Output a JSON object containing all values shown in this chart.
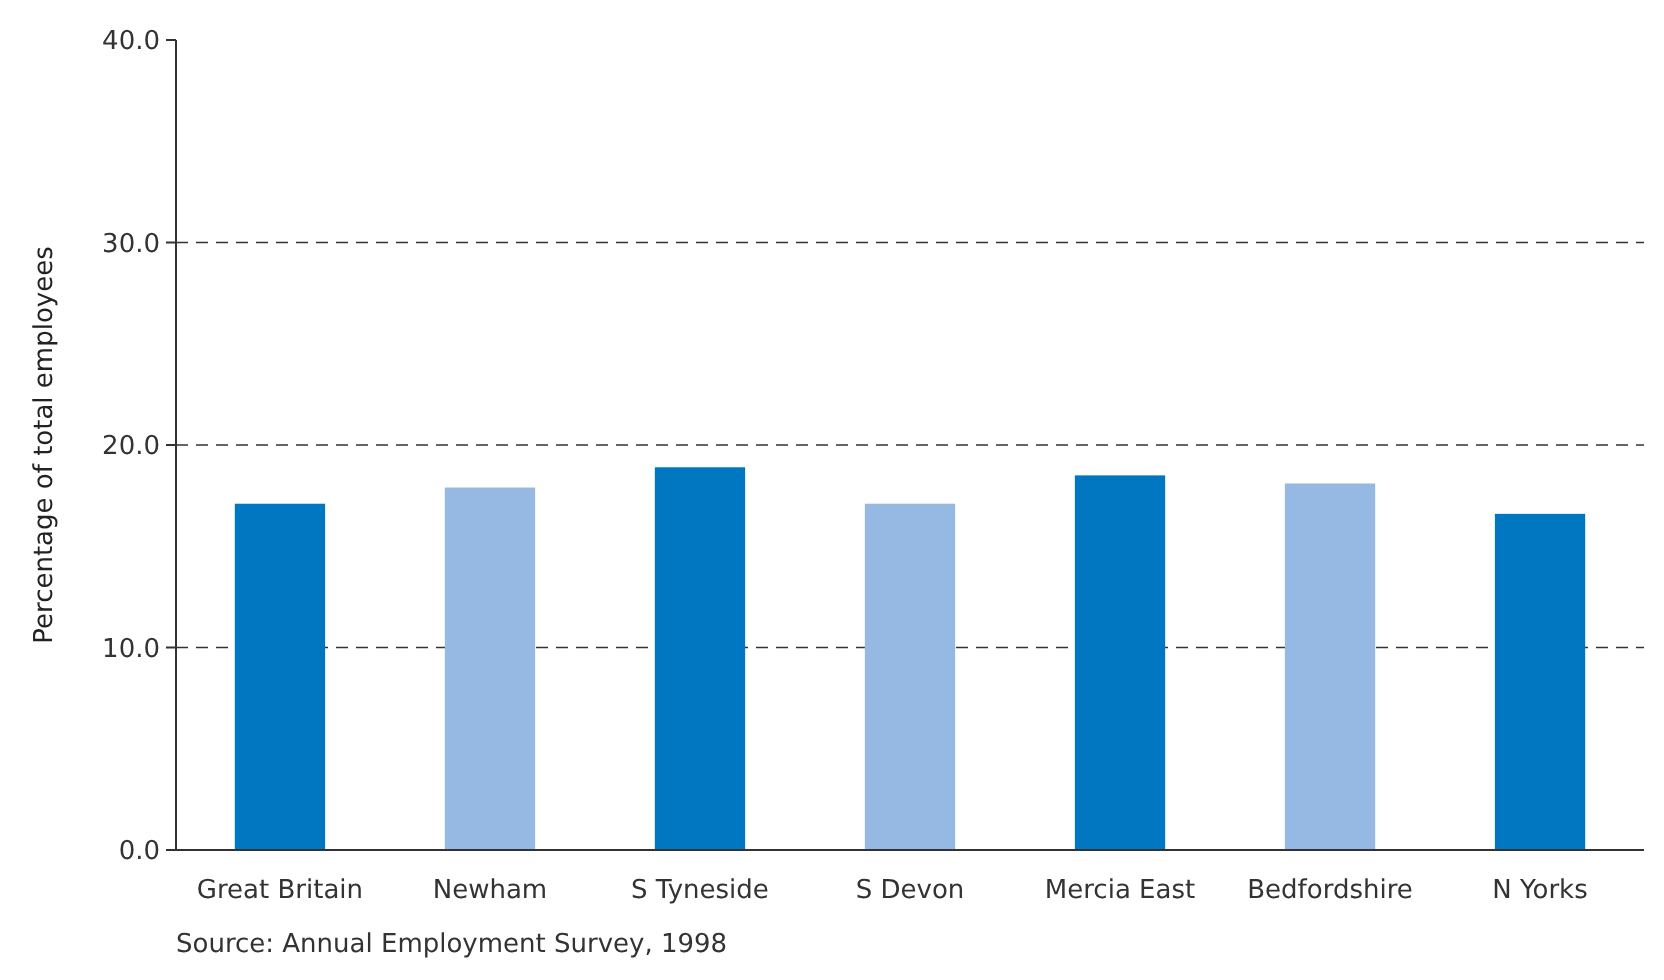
{
  "chart_data": {
    "type": "bar",
    "ylabel": "Percentage of total employees",
    "categories": [
      "Great Britain",
      "Newham",
      "S Tyneside",
      "S Devon",
      "Mercia East",
      "Bedfordshire",
      "N Yorks"
    ],
    "values": [
      17.1,
      17.9,
      18.9,
      17.1,
      18.5,
      18.1,
      16.6
    ],
    "colors": [
      "#0077c0",
      "#96b9e3",
      "#0077c0",
      "#96b9e3",
      "#0077c0",
      "#96b9e3",
      "#0077c0"
    ],
    "ylim": [
      0,
      40
    ],
    "yticks": [
      {
        "value": 0,
        "label": "0.0"
      },
      {
        "value": 10,
        "label": "10.0"
      },
      {
        "value": 20,
        "label": "20.0"
      },
      {
        "value": 30,
        "label": "30.0"
      },
      {
        "value": 40,
        "label": "40.0"
      }
    ],
    "grid": "y",
    "line_style": "dashed",
    "annotations": [
      "Source: Annual Employment Survey, 1998"
    ]
  }
}
